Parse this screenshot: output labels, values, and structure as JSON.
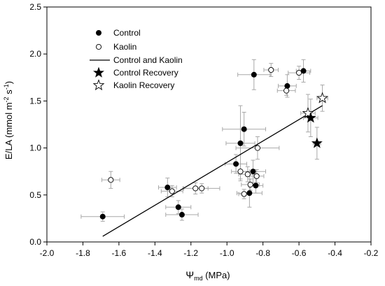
{
  "chart_data": {
    "type": "scatter",
    "xlabel_symbol": "Ψ",
    "xlabel_subscript": "md",
    "xlabel_unit": " (MPa)",
    "ylabel_main": "E/LA (mmol m",
    "ylabel_sup1": "-2",
    "ylabel_mid": " s",
    "ylabel_sup2": "-1",
    "ylabel_end": ")",
    "xlim": [
      -2.0,
      -0.2
    ],
    "ylim": [
      0.0,
      2.5
    ],
    "xticks": [
      -2.0,
      -1.8,
      -1.6,
      -1.4,
      -1.2,
      -1.0,
      -0.8,
      -0.6,
      -0.4,
      -0.2
    ],
    "xtick_labels": [
      "-2.0",
      "-1.8",
      "-1.6",
      "-1.4",
      "-1.2",
      "-1.0",
      "-0.8",
      "-0.6",
      "-0.4",
      "-0.2"
    ],
    "yticks": [
      0.0,
      0.5,
      1.0,
      1.5,
      2.0,
      2.5
    ],
    "ytick_labels": [
      "0.0",
      "0.5",
      "1.0",
      "1.5",
      "2.0",
      "2.5"
    ],
    "grid": false,
    "legend_position": "top-left",
    "legend": [
      {
        "label": "Control",
        "marker": "filled-circle"
      },
      {
        "label": "Kaolin",
        "marker": "open-circle"
      },
      {
        "label": "Control and Kaolin",
        "marker": "line"
      },
      {
        "label": "Control Recovery",
        "marker": "filled-star"
      },
      {
        "label": "Kaolin Recovery",
        "marker": "open-star"
      }
    ],
    "colors": {
      "marker": "#000000",
      "error_bar": "#a8a8a8",
      "axis": "#000000"
    },
    "series": [
      {
        "name": "Control",
        "marker": "filled-circle",
        "points": [
          {
            "x": -1.69,
            "y": 0.27,
            "xerr": 0.12,
            "yerr": 0.05
          },
          {
            "x": -1.33,
            "y": 0.58,
            "xerr": 0.05,
            "yerr": 0.1
          },
          {
            "x": -1.27,
            "y": 0.37,
            "xerr": 0.07,
            "yerr": 0.07
          },
          {
            "x": -1.25,
            "y": 0.29,
            "xerr": 0.09,
            "yerr": 0.06
          },
          {
            "x": -0.95,
            "y": 0.83,
            "xerr": 0.06,
            "yerr": 0.1
          },
          {
            "x": -0.925,
            "y": 1.05,
            "xerr": 0.08,
            "yerr": 0.4
          },
          {
            "x": -0.905,
            "y": 1.2,
            "xerr": 0.12,
            "yerr": 0.18
          },
          {
            "x": -0.875,
            "y": 0.52,
            "xerr": 0.07,
            "yerr": 0.15
          },
          {
            "x": -0.855,
            "y": 0.75,
            "xerr": 0.07,
            "yerr": 0.12
          },
          {
            "x": -0.85,
            "y": 1.78,
            "xerr": 0.09,
            "yerr": 0.16
          },
          {
            "x": -0.84,
            "y": 0.6,
            "xerr": 0.04,
            "yerr": 0.08
          },
          {
            "x": -0.665,
            "y": 1.66,
            "xerr": 0.05,
            "yerr": 0.12
          },
          {
            "x": -0.575,
            "y": 1.82,
            "xerr": 0.04,
            "yerr": 0.12
          }
        ]
      },
      {
        "name": "Kaolin",
        "marker": "open-circle",
        "points": [
          {
            "x": -1.645,
            "y": 0.66,
            "xerr": 0.05,
            "yerr": 0.09
          },
          {
            "x": -1.305,
            "y": 0.54,
            "xerr": 0.06,
            "yerr": 0.06
          },
          {
            "x": -1.175,
            "y": 0.57,
            "xerr": 0.07,
            "yerr": 0.06
          },
          {
            "x": -1.14,
            "y": 0.57,
            "xerr": 0.1,
            "yerr": 0.05
          },
          {
            "x": -0.925,
            "y": 0.75,
            "xerr": 0.05,
            "yerr": 0.08
          },
          {
            "x": -0.905,
            "y": 0.51,
            "xerr": 0.03,
            "yerr": 0.05
          },
          {
            "x": -0.885,
            "y": 0.72,
            "xerr": 0.05,
            "yerr": 0.08
          },
          {
            "x": -0.87,
            "y": 0.61,
            "xerr": 0.05,
            "yerr": 0.06
          },
          {
            "x": -0.835,
            "y": 0.7,
            "xerr": 0.04,
            "yerr": 0.07
          },
          {
            "x": -0.83,
            "y": 1.0,
            "xerr": 0.12,
            "yerr": 0.12
          },
          {
            "x": -0.755,
            "y": 1.83,
            "xerr": 0.04,
            "yerr": 0.07
          },
          {
            "x": -0.67,
            "y": 1.61,
            "xerr": 0.05,
            "yerr": 0.05
          },
          {
            "x": -0.6,
            "y": 1.8,
            "xerr": 0.06,
            "yerr": 0.07
          }
        ]
      },
      {
        "name": "Control Recovery",
        "marker": "filled-star",
        "points": [
          {
            "x": -0.535,
            "y": 1.32,
            "xerr": 0.04,
            "yerr": 0.2
          },
          {
            "x": -0.5,
            "y": 1.05,
            "xerr": 0.02,
            "yerr": 0.17
          }
        ]
      },
      {
        "name": "Kaolin Recovery",
        "marker": "open-star",
        "points": [
          {
            "x": -0.55,
            "y": 1.37,
            "xerr": 0.04,
            "yerr": 0.2
          },
          {
            "x": -0.47,
            "y": 1.53,
            "xerr": 0.03,
            "yerr": 0.14
          }
        ]
      }
    ],
    "regression_line": {
      "name": "Control and Kaolin",
      "x": [
        -1.69,
        -0.47
      ],
      "y": [
        0.06,
        1.45
      ]
    }
  }
}
